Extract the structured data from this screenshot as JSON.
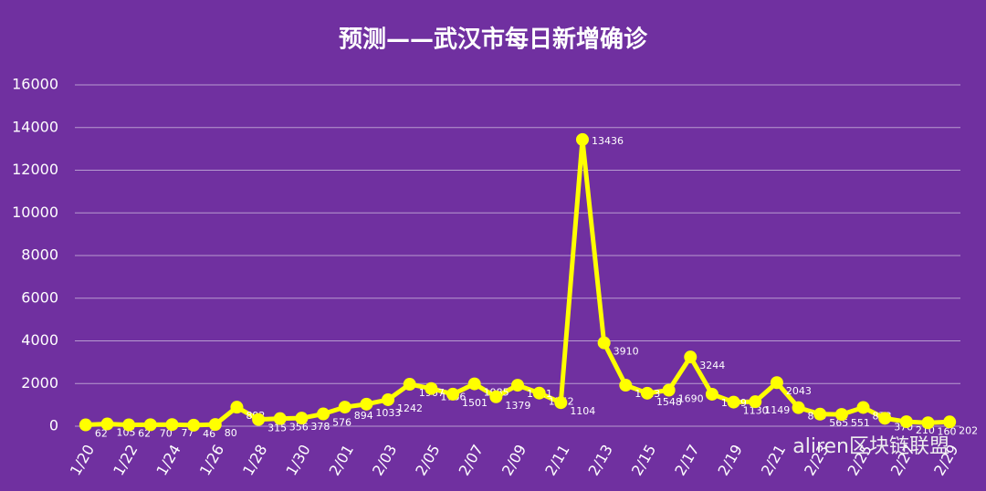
{
  "chart_data": {
    "type": "line",
    "title": "预测——武汉市每日新增确诊",
    "categories": [
      "1/20",
      null,
      "1/22",
      null,
      "1/24",
      null,
      "1/26",
      null,
      "1/28",
      null,
      "1/30",
      null,
      "2/01",
      null,
      "2/03",
      null,
      "2/05",
      null,
      "2/07",
      null,
      "2/09",
      null,
      "2/11",
      null,
      "2/13",
      null,
      "2/15",
      null,
      "2/17",
      null,
      "2/19",
      null,
      "2/21",
      null,
      "2/23",
      null,
      "2/25",
      null,
      "2/27",
      null,
      "2/29"
    ],
    "series": [
      {
        "name": "武汉市每日新增确诊",
        "color": "#ffff00",
        "values": [
          62,
          105,
          62,
          70,
          77,
          46,
          80,
          892,
          315,
          356,
          378,
          576,
          894,
          1033,
          1242,
          1967,
          1766,
          1501,
          1985,
          1379,
          1921,
          1552,
          1104,
          13436,
          3910,
          1923,
          1548,
          1690,
          3244,
          1499,
          1130,
          1149,
          2043,
          869,
          565,
          551,
          878,
          370,
          210,
          160,
          202
        ]
      }
    ],
    "ylim": [
      0,
      16000
    ],
    "yticks": [
      0,
      2000,
      4000,
      6000,
      8000,
      10000,
      12000,
      14000,
      16000
    ],
    "grid": true,
    "watermark": "aliren区块链联盟"
  }
}
